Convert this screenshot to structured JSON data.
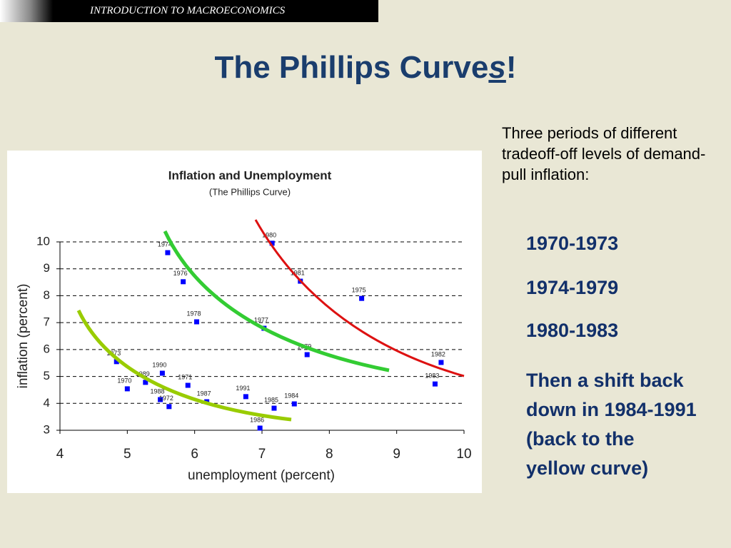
{
  "header": "INTRODUCTION TO MACROECONOMICS",
  "title": {
    "before": "The Phillips Curve",
    "emphasis": "s",
    "after": "!"
  },
  "intro": "Three periods of different tradeoff-off levels of demand-pull inflation:",
  "periods": [
    "1970-1973",
    "1974-1979",
    "1980-1983"
  ],
  "closing": "Then a shift back down in 1984-1991 (back to the yellow curve)",
  "chart_data": {
    "type": "scatter",
    "title": "Inflation and Unemployment",
    "subtitle": "(The Phillips Curve)",
    "xlabel": "unemployment (percent)",
    "ylabel": "inflation (percent)",
    "labels": [
      "1973",
      "1970",
      "1989",
      "1990",
      "1988",
      "1972",
      "1971",
      "1987",
      "1991",
      "1985",
      "1984",
      "1986",
      "1974",
      "1976",
      "1978",
      "1977",
      "1979",
      "1980",
      "1981",
      "1975",
      "1982",
      "1983"
    ],
    "x": [
      4.84,
      5.0,
      5.27,
      5.52,
      5.49,
      5.62,
      5.9,
      6.18,
      6.76,
      7.18,
      7.48,
      6.97,
      5.6,
      5.83,
      6.03,
      7.03,
      7.67,
      7.15,
      7.57,
      8.48,
      9.66,
      9.57
    ],
    "values": [
      5.55,
      4.54,
      4.78,
      5.12,
      4.14,
      3.88,
      4.67,
      4.06,
      4.25,
      3.82,
      3.98,
      3.08,
      9.6,
      8.52,
      7.03,
      6.79,
      5.81,
      9.95,
      8.54,
      7.9,
      5.52,
      4.72
    ],
    "color": "#0000ff",
    "xlim": [
      4,
      10
    ],
    "xticks": [
      4,
      5,
      6,
      7,
      8,
      9,
      10
    ],
    "ylim": [
      3,
      10
    ],
    "yticks": [
      3,
      4,
      5,
      6,
      7,
      8,
      9,
      10
    ],
    "grid": true
  }
}
